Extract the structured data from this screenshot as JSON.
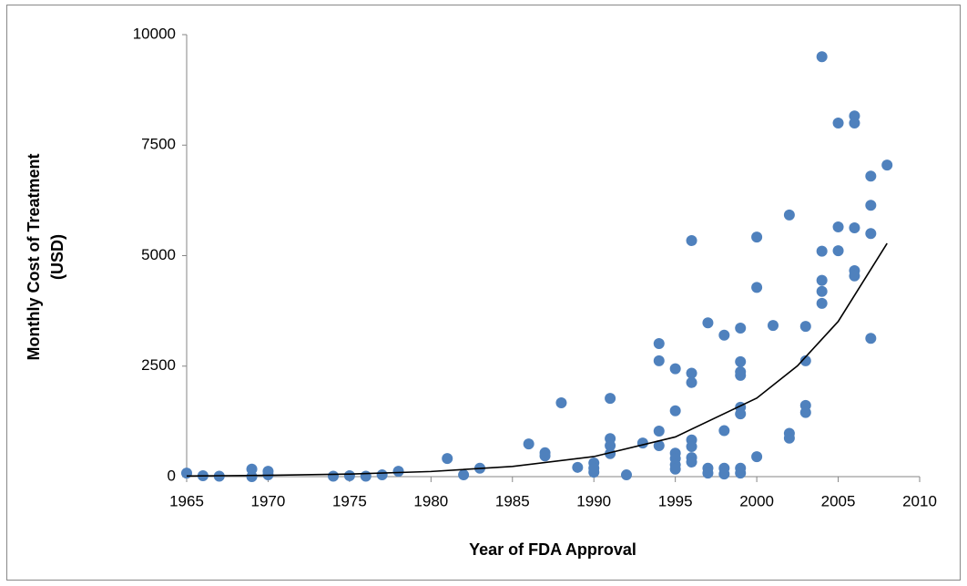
{
  "chart_data": {
    "type": "scatter",
    "xlabel": "Year of FDA Approval",
    "ylabel": [
      "Monthly Cost of Treatment",
      "(USD)"
    ],
    "xlim": [
      1965,
      2010
    ],
    "xticks": [
      1965,
      1970,
      1975,
      1980,
      1985,
      1990,
      1995,
      2000,
      2005,
      2010
    ],
    "ylim": [
      0,
      10000
    ],
    "yticks": [
      0,
      2500,
      5000,
      7500,
      10000
    ],
    "grid": false,
    "series": [
      {
        "color": "#4f81bd",
        "x": [
          1965,
          1966,
          1967,
          1969,
          1969,
          1970,
          1970,
          1974,
          1975,
          1976,
          1977,
          1978,
          1981,
          1982,
          1983,
          1986,
          1987,
          1987,
          1988,
          1989,
          1990,
          1990,
          1990,
          1991,
          1991,
          1991,
          1991,
          1992,
          1993,
          1994,
          1994,
          1994,
          1994,
          1995,
          1995,
          1995,
          1995,
          1995,
          1995,
          1996,
          1996,
          1996,
          1996,
          1996,
          1996,
          1996,
          1997,
          1997,
          1997,
          1998,
          1998,
          1998,
          1998,
          1999,
          1999,
          1999,
          1999,
          1999,
          1999,
          1999,
          1999,
          2000,
          2000,
          2000,
          2001,
          2002,
          2002,
          2002,
          2003,
          2003,
          2003,
          2003,
          2004,
          2004,
          2004,
          2004,
          2004,
          2005,
          2005,
          2005,
          2006,
          2006,
          2006,
          2006,
          2006,
          2007,
          2007,
          2007,
          2007,
          2008
        ],
        "values": [
          80,
          20,
          10,
          170,
          0,
          120,
          40,
          10,
          20,
          10,
          40,
          120,
          410,
          40,
          190,
          740,
          540,
          470,
          1670,
          210,
          310,
          100,
          190,
          1770,
          860,
          700,
          520,
          40,
          760,
          3010,
          2620,
          1030,
          700,
          2440,
          1490,
          530,
          410,
          270,
          170,
          5340,
          2340,
          2130,
          830,
          680,
          430,
          330,
          3480,
          190,
          80,
          3200,
          1040,
          190,
          60,
          3360,
          2600,
          2370,
          2290,
          1570,
          1420,
          190,
          80,
          5420,
          4280,
          450,
          3420,
          5920,
          980,
          870,
          3400,
          2620,
          1610,
          1450,
          9500,
          5100,
          4440,
          4190,
          3920,
          8000,
          5650,
          5110,
          8160,
          8000,
          5630,
          4660,
          4540,
          6800,
          6140,
          5500,
          3130,
          7050
        ]
      }
    ],
    "trendline": {
      "color": "#000000",
      "x": [
        1965,
        1970,
        1975,
        1980,
        1985,
        1990,
        1995,
        2000,
        2002.5,
        2005,
        2008
      ],
      "values": [
        15,
        30,
        59,
        116,
        230,
        454,
        898,
        1776,
        2508,
        3511,
        5277
      ]
    }
  }
}
